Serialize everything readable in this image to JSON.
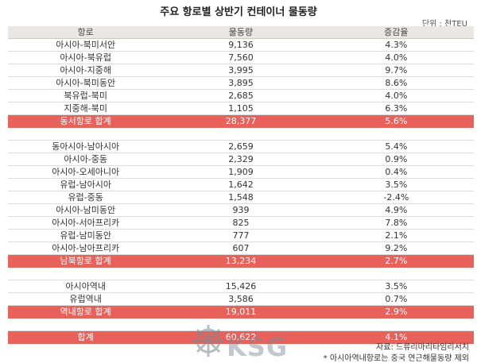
{
  "title": "주요 항로별 상반기 컨테이너 물동량",
  "unit": "단위 : 천TEU",
  "headers": [
    "항로",
    "물동량",
    "증감율"
  ],
  "group1": [
    [
      "아시아-북미서안",
      "9,136",
      "4.3%"
    ],
    [
      "아시아-북유럽",
      "7,560",
      "4.0%"
    ],
    [
      "아시아-지중해",
      "3,995",
      "9.7%"
    ],
    [
      "아시아-북미동안",
      "3,895",
      "8.6%"
    ],
    [
      "북유럽-북미",
      "2,685",
      "4.0%"
    ],
    [
      "지중해-북미",
      "1,105",
      "6.3%"
    ]
  ],
  "total1": [
    "동서항로 합계",
    "28,377",
    "5.6%"
  ],
  "group2": [
    [
      "동아시아-남아시아",
      "2,659",
      "5.4%"
    ],
    [
      "아시아-중동",
      "2,329",
      "0.9%"
    ],
    [
      "아시아-오세아니아",
      "1,909",
      "0.4%"
    ],
    [
      "유럽-남아시아",
      "1,642",
      "3.5%"
    ],
    [
      "유럽-중동",
      "1,548",
      "-2.4%"
    ],
    [
      "아시아-남미동안",
      "939",
      "4.9%"
    ],
    [
      "아시아-서아프리카",
      "825",
      "7.8%"
    ],
    [
      "유럽-남미동안",
      "777",
      "2.1%"
    ],
    [
      "아시아-남아프리카",
      "607",
      "9.2%"
    ]
  ],
  "total2": [
    "남북항로 합계",
    "13,234",
    "2.7%"
  ],
  "group3": [
    [
      "아시아역내",
      "15,426",
      "3.5%"
    ],
    [
      "유럽역내",
      "3,586",
      "0.7%"
    ]
  ],
  "total3": [
    "역내항로 합계",
    "19,011",
    "2.9%"
  ],
  "grand_total": [
    "합계",
    "60,622",
    "4.1%"
  ],
  "source": "자료: 드류리마리타임리서치",
  "note": "* 아시아역내항로는 중국 연근해물동량 제외",
  "watermark": "KSG",
  "colors": {
    "total_row": "#e8615a",
    "header_row": "#ebe7e4"
  }
}
